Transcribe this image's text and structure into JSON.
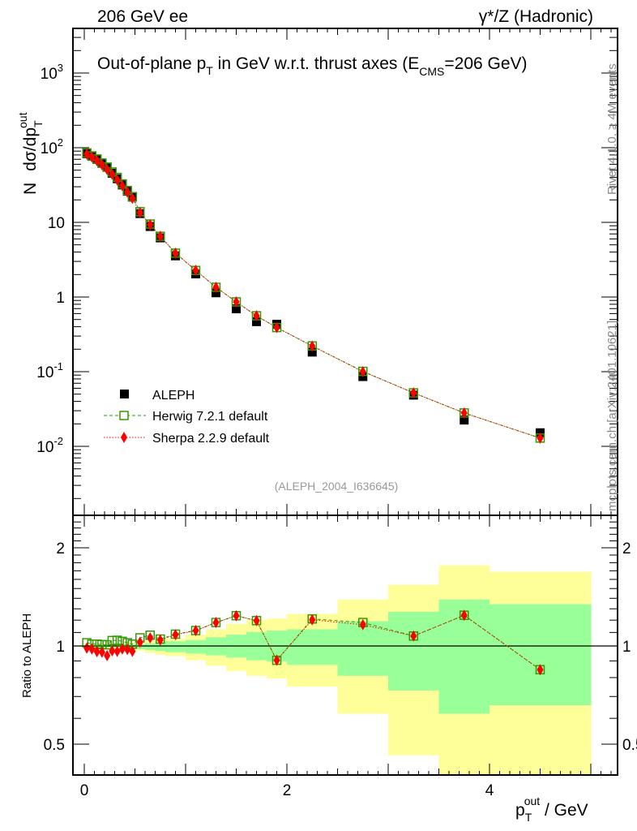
{
  "header": {
    "left": "206 GeV ee",
    "right": "γ*/Z (Hadronic)"
  },
  "side_text": {
    "rivet": "Rivet 4.1.0, ≥ 4M events",
    "mcplots": "mcplots.cern.ch [arXiv:2401.10621]"
  },
  "watermark": "(ALEPH_2004_I636645)",
  "chart_data": [
    {
      "type": "scatter",
      "title": "Out-of-plane p_T in GeV w.r.t. thrust axes (E_CMS=206 GeV)",
      "title_parts": {
        "a": "Out-of-plane p",
        "b": "T",
        "c": " in GeV w.r.t. thrust axes (E",
        "d": "CMS",
        "e": "=206 GeV)"
      },
      "ylabel": "N  dσ/dp_T^out",
      "ylabel_parts": {
        "n": "N",
        "main": "dσ/dp",
        "sub": "T",
        "sup": "out"
      },
      "yscale": "log",
      "ylim": [
        0.0012,
        4000
      ],
      "yticks": [
        {
          "v": 0.01,
          "m": "10",
          "e": "-2"
        },
        {
          "v": 0.1,
          "m": "10",
          "e": "-1"
        },
        {
          "v": 1,
          "m": "1",
          "e": ""
        },
        {
          "v": 10,
          "m": "10",
          "e": ""
        },
        {
          "v": 100,
          "m": "10",
          "e": "2"
        },
        {
          "v": 1000,
          "m": "10",
          "e": "3"
        }
      ],
      "xlim": [
        -0.11,
        5.26
      ],
      "x": [
        0.025,
        0.075,
        0.125,
        0.175,
        0.225,
        0.275,
        0.325,
        0.375,
        0.425,
        0.475,
        0.55,
        0.65,
        0.75,
        0.9,
        1.1,
        1.3,
        1.5,
        1.7,
        1.9,
        2.25,
        2.75,
        3.25,
        3.75,
        4.5
      ],
      "legend_position": "lower-left",
      "series": [
        {
          "name": "ALEPH",
          "color": "#000000",
          "marker": "filled-square",
          "values": [
            83.2,
            76.6,
            69.7,
            61.7,
            54.6,
            45.5,
            38.4,
            31.7,
            26.1,
            21.8,
            13.1,
            8.8,
            6.2,
            3.56,
            2.04,
            1.14,
            0.695,
            0.468,
            0.431,
            0.183,
            0.086,
            0.0485,
            0.0225,
            0.0152
          ]
        },
        {
          "name": "Herwig 7.2.1 default",
          "color": "#339900",
          "marker": "open-square",
          "line": "dashed",
          "values": [
            85.1,
            77.6,
            70.6,
            62.3,
            55.0,
            47.3,
            40.0,
            32.7,
            26.7,
            22.1,
            13.9,
            9.5,
            6.5,
            3.87,
            2.27,
            1.35,
            0.86,
            0.56,
            0.39,
            0.221,
            0.101,
            0.052,
            0.028,
            0.0129
          ]
        },
        {
          "name": "Sherpa 2.2.9 default",
          "color": "#ff0000",
          "marker": "diamond",
          "line": "dotted",
          "values": [
            82,
            75,
            67,
            59,
            51,
            44,
            37,
            31,
            25.5,
            21,
            13.5,
            9.3,
            6.5,
            3.86,
            2.28,
            1.35,
            0.86,
            0.56,
            0.39,
            0.22,
            0.1,
            0.052,
            0.028,
            0.0129
          ]
        }
      ]
    },
    {
      "type": "scatter",
      "ylabel": "Ratio to ALEPH",
      "xlabel": "p_T^out / GeV",
      "xlabel_parts": {
        "main": "p",
        "sub": "T",
        "sup": "out",
        "unit": " / GeV"
      },
      "yscale": "log",
      "ylim": [
        0.4,
        2.5
      ],
      "yticks": [
        {
          "v": 0.5,
          "label": "0.5"
        },
        {
          "v": 1,
          "label": "1"
        },
        {
          "v": 2,
          "label": "2"
        }
      ],
      "xticks": [
        {
          "v": 0,
          "label": "0"
        },
        {
          "v": 2,
          "label": "2"
        },
        {
          "v": 4,
          "label": "4"
        }
      ],
      "bin_edges": [
        0,
        0.05,
        0.1,
        0.15,
        0.2,
        0.25,
        0.3,
        0.35,
        0.4,
        0.45,
        0.5,
        0.6,
        0.7,
        0.8,
        1.0,
        1.2,
        1.4,
        1.6,
        1.8,
        2.0,
        2.5,
        3.0,
        3.5,
        4.0,
        5.0
      ],
      "band_colors": {
        "total": "#ffff99",
        "stat": "#99ff99"
      },
      "band_total_lo": [
        0.99,
        0.988,
        0.986,
        0.984,
        0.982,
        0.98,
        0.978,
        0.976,
        0.974,
        0.972,
        0.966,
        0.952,
        0.939,
        0.93,
        0.904,
        0.87,
        0.838,
        0.81,
        0.794,
        0.751,
        0.62,
        0.462,
        0.3,
        0.3
      ],
      "band_total_hi": [
        1.012,
        1.013,
        1.014,
        1.015,
        1.016,
        1.017,
        1.018,
        1.019,
        1.02,
        1.022,
        1.029,
        1.037,
        1.043,
        1.053,
        1.083,
        1.125,
        1.169,
        1.203,
        1.214,
        1.254,
        1.388,
        1.54,
        1.767,
        1.688
      ],
      "band_stat_lo": [
        0.995,
        0.994,
        0.993,
        0.992,
        0.991,
        0.99,
        0.989,
        0.988,
        0.986,
        0.984,
        0.979,
        0.972,
        0.966,
        0.957,
        0.948,
        0.936,
        0.921,
        0.904,
        0.895,
        0.875,
        0.81,
        0.73,
        0.62,
        0.658
      ],
      "band_stat_hi": [
        1.006,
        1.006,
        1.007,
        1.007,
        1.008,
        1.008,
        1.009,
        1.009,
        1.01,
        1.011,
        1.013,
        1.019,
        1.023,
        1.033,
        1.043,
        1.063,
        1.083,
        1.104,
        1.115,
        1.125,
        1.191,
        1.274,
        1.388,
        1.343
      ],
      "series": [
        {
          "name": "Herwig 7.2.1 default",
          "values": [
            1.023,
            1.013,
            1.013,
            1.01,
            1.008,
            1.039,
            1.041,
            1.033,
            1.023,
            1.013,
            1.059,
            1.079,
            1.05,
            1.087,
            1.115,
            1.18,
            1.238,
            1.196,
            0.904,
            1.21,
            1.18,
            1.073,
            1.242,
            0.846
          ]
        },
        {
          "name": "Sherpa 2.2.9 default",
          "values": [
            0.985,
            0.979,
            0.961,
            0.957,
            0.934,
            0.966,
            0.963,
            0.979,
            0.976,
            0.963,
            1.027,
            1.059,
            1.043,
            1.083,
            1.115,
            1.18,
            1.238,
            1.196,
            0.904,
            1.203,
            1.162,
            1.073,
            1.242,
            0.846
          ]
        }
      ]
    }
  ]
}
